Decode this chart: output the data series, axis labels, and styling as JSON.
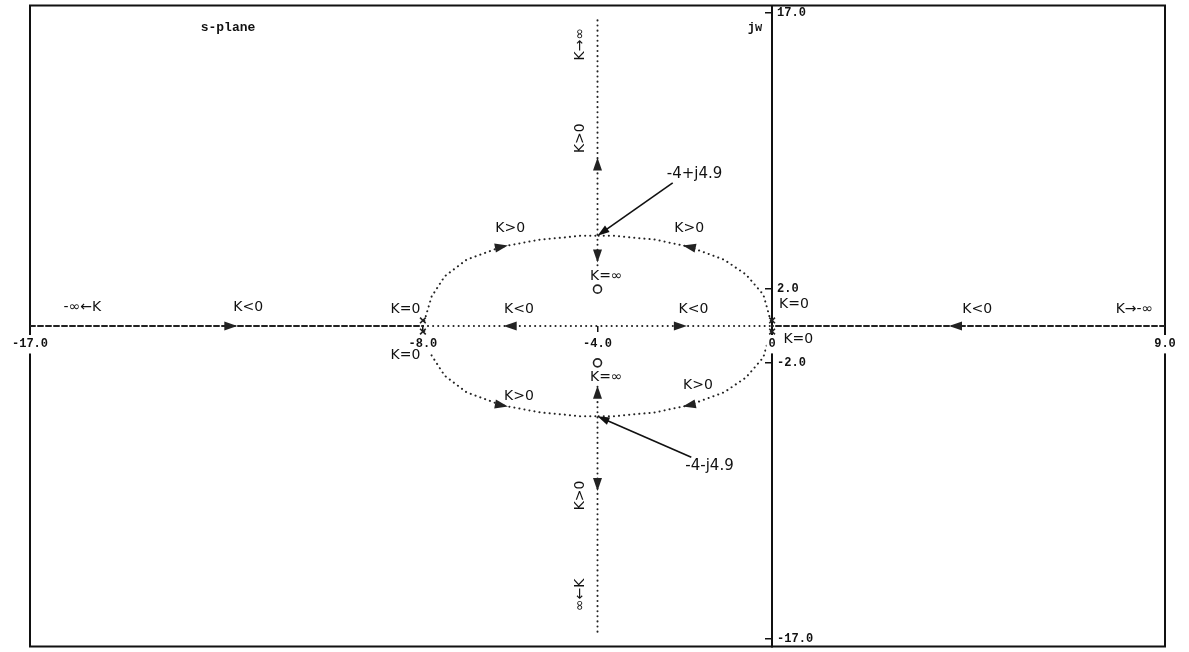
{
  "chart_data": {
    "type": "line",
    "title": "s-plane",
    "ylabel": "jw",
    "xlim": [
      -17,
      9
    ],
    "ylim": [
      -17.4,
      17.4
    ],
    "xticks": [
      {
        "value": -17,
        "label": "-17.0"
      },
      {
        "value": -8,
        "label": "-8.0"
      },
      {
        "value": -4,
        "label": "-4.0"
      },
      0,
      {
        "value": 9,
        "label": "9.0"
      }
    ],
    "yticks": [
      {
        "value": -17,
        "label": "-17.0"
      },
      {
        "value": -2,
        "label": "-2.0"
      },
      {
        "value": 2,
        "label": "2.0"
      },
      {
        "value": 17,
        "label": "17.0"
      }
    ],
    "line_style": "dotted",
    "series": [
      {
        "color": "#222222",
        "line_style": "dashed",
        "x": [
          -17,
          -12.4,
          -8
        ],
        "values": [
          0,
          0,
          0
        ]
      },
      {
        "color": "#222222",
        "x": [
          -8,
          -6.0,
          -4,
          -2.1,
          0
        ],
        "values": [
          0,
          0,
          0,
          0,
          0
        ]
      },
      {
        "color": "#222222",
        "line_style": "dashed",
        "x": [
          9,
          4.2,
          0
        ],
        "values": [
          0,
          0,
          0
        ]
      },
      {
        "color": "#222222",
        "x": [
          -8,
          -7.8,
          -7.5,
          -7.0,
          -6.2,
          -5.3,
          -4.8,
          -4.4,
          -4
        ],
        "values": [
          0,
          1.6,
          2.7,
          3.6,
          4.3,
          4.7,
          4.8,
          4.9,
          4.9
        ]
      },
      {
        "color": "#222222",
        "x": [
          0,
          -0.2,
          -0.6,
          -1.1,
          -1.9,
          -2.7,
          -3.2,
          -3.6,
          -4
        ],
        "values": [
          0,
          1.7,
          2.8,
          3.6,
          4.3,
          4.7,
          4.8,
          4.9,
          4.9
        ]
      },
      {
        "color": "#222222",
        "x": [
          -8,
          -7.8,
          -7.5,
          -7.0,
          -6.2,
          -5.3,
          -4.8,
          -4.4,
          -4
        ],
        "values": [
          0,
          -1.6,
          -2.7,
          -3.6,
          -4.3,
          -4.7,
          -4.8,
          -4.9,
          -4.9
        ]
      },
      {
        "color": "#222222",
        "x": [
          0,
          -0.2,
          -0.6,
          -1.1,
          -1.9,
          -2.7,
          -3.2,
          -3.6,
          -4
        ],
        "values": [
          0,
          -1.7,
          -2.8,
          -3.6,
          -4.3,
          -4.7,
          -4.8,
          -4.9,
          -4.9
        ]
      },
      {
        "color": "#222222",
        "x": [
          -4,
          -4,
          -4,
          -4,
          -4
        ],
        "values": [
          16.6,
          8.8,
          4.9,
          3.8,
          3.2
        ]
      },
      {
        "color": "#222222",
        "x": [
          -4,
          -4,
          -4,
          -4,
          -4
        ],
        "values": [
          -16.6,
          -8.6,
          -4.9,
          -3.6,
          -3.2
        ]
      },
      {
        "type": "scatter",
        "color": "#222222",
        "marker": "cross",
        "x": [
          -8,
          -8,
          0,
          0
        ],
        "values": [
          0.3,
          -0.3,
          0.3,
          -0.3
        ]
      },
      {
        "type": "scatter",
        "color": "#222222",
        "marker": "circle",
        "x": [
          -4,
          -4
        ],
        "values": [
          2,
          -2
        ]
      }
    ],
    "annotations": [
      "-∞←K",
      "K<0",
      "K=0",
      "K=0",
      "K>0",
      "K<0",
      "K=∞",
      "K<0",
      "K>0",
      "K=∞",
      "K>0",
      "K>0",
      "K=0",
      "K=0",
      "K<0",
      "K→-∞",
      "K→∞",
      "K>0",
      "K>0",
      "∞←K",
      {
        "text": "-4+j4.9",
        "x": -4,
        "y": 4.9
      },
      {
        "text": "-4-j4.9",
        "x": -4,
        "y": -4.9
      }
    ]
  }
}
